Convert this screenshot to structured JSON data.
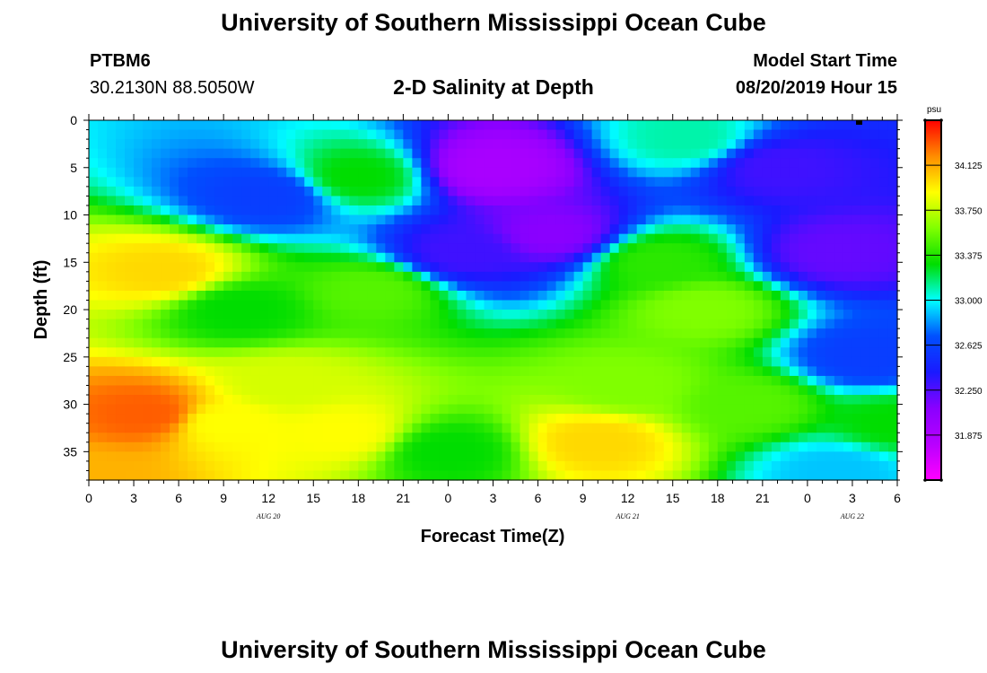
{
  "header": {
    "top_title": "University of Southern Mississippi Ocean Cube",
    "bottom_title": "University of Southern Mississippi Ocean Cube",
    "station_id": "PTBM6",
    "station_coords": "30.2130N 88.5050W",
    "plot_title": "2-D Salinity at Depth",
    "model_start_label": "Model Start Time",
    "model_start_value": "08/20/2019 Hour 15"
  },
  "chart_data": {
    "type": "heatmap",
    "title": "2-D Salinity at Depth",
    "xlabel": "Forecast Time(Z)",
    "ylabel": "Depth (ft)",
    "x_tick_labels": [
      "0",
      "3",
      "6",
      "9",
      "12",
      "15",
      "18",
      "21",
      "0",
      "3",
      "6",
      "9",
      "12",
      "15",
      "18",
      "21",
      "0",
      "3",
      "6"
    ],
    "date_labels": [
      {
        "text": "AUG 20",
        "hour": 12
      },
      {
        "text": "AUG 21",
        "hour": 36
      },
      {
        "text": "AUG 22",
        "hour": 51
      }
    ],
    "xlim": [
      0,
      54
    ],
    "y_ticks": [
      0,
      5,
      10,
      15,
      20,
      25,
      30,
      35
    ],
    "ylim": [
      0,
      38
    ],
    "y_inverted": true,
    "colorbar": {
      "unit": "psu",
      "range": [
        31.5,
        34.5
      ],
      "tick_values": [
        34.125,
        33.75,
        33.375,
        33.0,
        32.625,
        32.25,
        31.875
      ],
      "tick_labels": [
        "34.125",
        "33.750",
        "33.375",
        "33.000",
        "32.625",
        "32.250",
        "31.875"
      ],
      "colors_high_to_low": [
        "#ff0000",
        "#ff8c00",
        "#ffff00",
        "#80ff00",
        "#00dd00",
        "#00ffff",
        "#0050ff",
        "#1a1aff",
        "#8a00ff",
        "#b800ff",
        "#ff00ff"
      ]
    },
    "field_features": [
      {
        "t": 0,
        "d": 38,
        "salinity": 34.1
      },
      {
        "t": 4,
        "d": 31,
        "salinity": 34.3
      },
      {
        "t": 5,
        "d": 16,
        "salinity": 34.0
      },
      {
        "t": 10,
        "d": 20,
        "salinity": 33.3
      },
      {
        "t": 9,
        "d": 32,
        "salinity": 33.9
      },
      {
        "t": 12,
        "d": 8,
        "salinity": 32.6
      },
      {
        "t": 13,
        "d": 28,
        "salinity": 33.8
      },
      {
        "t": 17,
        "d": 33,
        "salinity": 33.9
      },
      {
        "t": 18,
        "d": 6,
        "salinity": 33.3
      },
      {
        "t": 19,
        "d": 18,
        "salinity": 33.5
      },
      {
        "t": 25,
        "d": 14,
        "salinity": 32.3
      },
      {
        "t": 27,
        "d": 5,
        "salinity": 31.9
      },
      {
        "t": 24,
        "d": 35,
        "salinity": 33.3
      },
      {
        "t": 31,
        "d": 12,
        "salinity": 32.1
      },
      {
        "t": 34,
        "d": 34,
        "salinity": 34.0
      },
      {
        "t": 36,
        "d": 28,
        "salinity": 33.6
      },
      {
        "t": 38,
        "d": 15,
        "salinity": 33.4
      },
      {
        "t": 40,
        "d": 2,
        "salinity": 33.1
      },
      {
        "t": 41,
        "d": 20,
        "salinity": 33.6
      },
      {
        "t": 44,
        "d": 30,
        "salinity": 33.5
      },
      {
        "t": 46,
        "d": 5,
        "salinity": 32.3
      },
      {
        "t": 50,
        "d": 14,
        "salinity": 32.2
      },
      {
        "t": 52,
        "d": 25,
        "salinity": 32.6
      },
      {
        "t": 50,
        "d": 37,
        "salinity": 32.9
      },
      {
        "t": 54,
        "d": 32,
        "salinity": 33.3
      }
    ]
  }
}
